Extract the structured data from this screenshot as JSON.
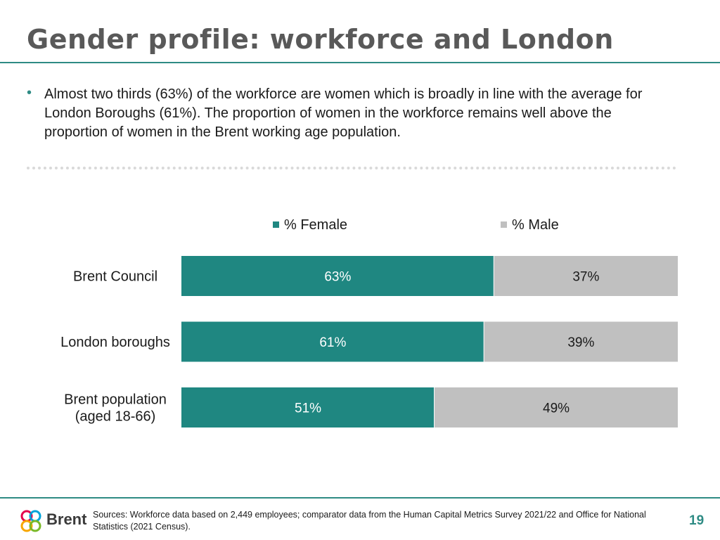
{
  "slide": {
    "title": "Gender profile: workforce and London",
    "bullet": "Almost two thirds (63%) of the workforce are women which is broadly in line with the average for London Boroughs (61%). The proportion of women in the workforce remains well above the proportion of women in the Brent working age population.",
    "sources": "Sources: Workforce data based on 2,449 employees; comparator data from the Human Capital Metrics Survey 2021/22 and Office for National Statistics (2021 Census).",
    "page_number": "19",
    "logo_text": "Brent"
  },
  "colors": {
    "female": "#1f8781",
    "male": "#c0c0c0",
    "accent": "#2e8b84"
  },
  "chart_data": {
    "type": "bar",
    "orientation": "horizontal",
    "stacked": true,
    "categories": [
      [
        "Brent Council"
      ],
      [
        "London boroughs"
      ],
      [
        "Brent population",
        "(aged 18-66)"
      ]
    ],
    "series": [
      {
        "name": "% Female",
        "values": [
          63,
          61,
          51
        ],
        "labels": [
          "63%",
          "61%",
          "51%"
        ]
      },
      {
        "name": "% Male",
        "values": [
          37,
          39,
          49
        ],
        "labels": [
          "37%",
          "39%",
          "49%"
        ]
      }
    ],
    "xlim": [
      0,
      100
    ],
    "legend_position": "top",
    "grid": false
  }
}
